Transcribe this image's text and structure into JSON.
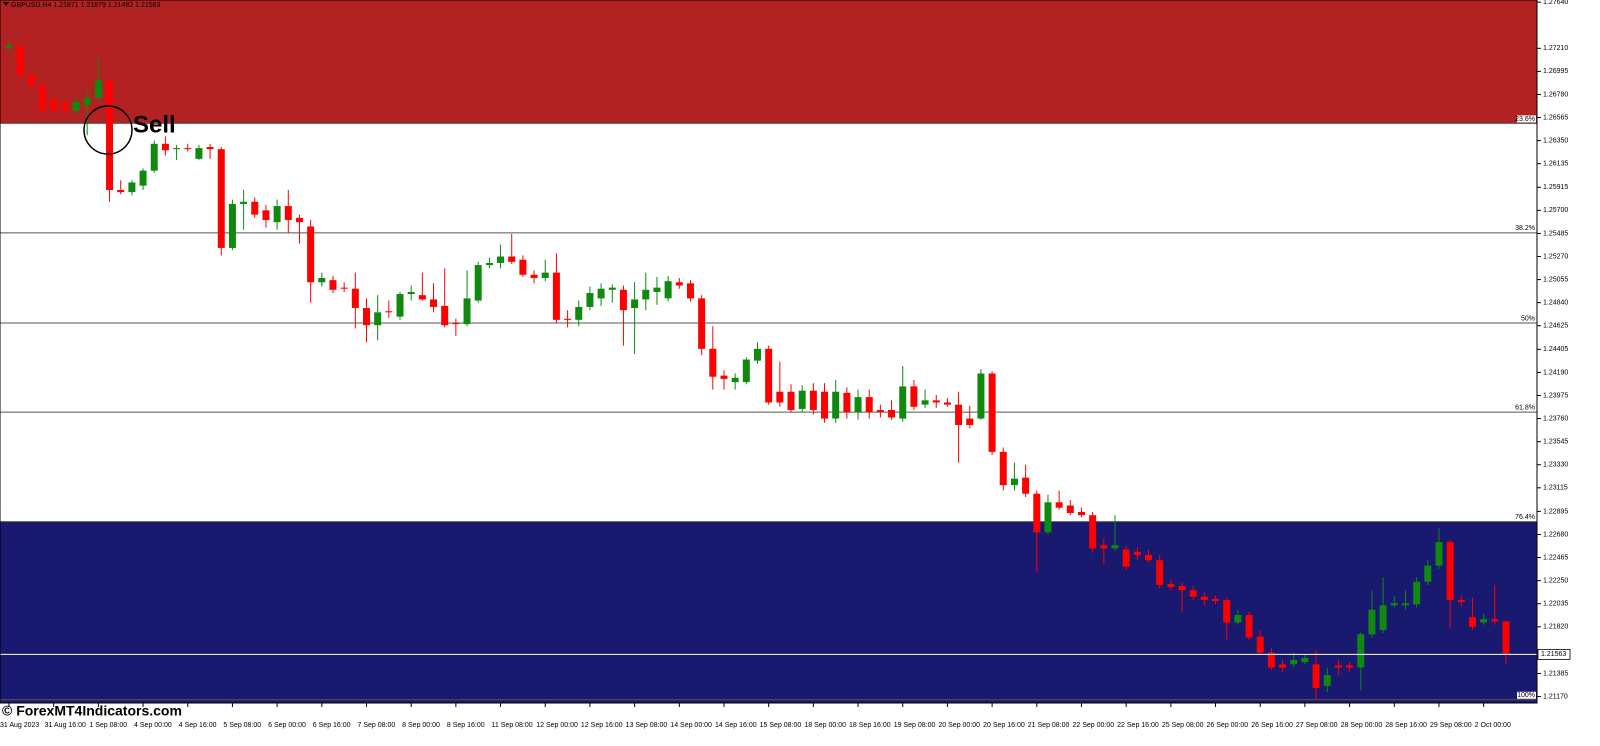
{
  "chart_data": {
    "type": "candlestick",
    "title": "GBPUSD,H4  1.21871 1.21879 1.21482 1.21563",
    "annotation": "Sell",
    "watermark": "© ForexMT4Indicators.com",
    "up_color": "#0f8a0f",
    "down_color": "#ff0000",
    "upper_zone_color": "#b22222",
    "lower_zone_color": "#191970",
    "categories": [
      "31 Aug 2023",
      null,
      null,
      null,
      "31 Aug 16:00",
      null,
      null,
      null,
      "1 Sep 08:00",
      null,
      null,
      null,
      "4 Sep 00:00",
      null,
      null,
      null,
      "4 Sep 16:00",
      null,
      null,
      null,
      "5 Sep 08:00",
      null,
      null,
      null,
      "6 Sep 00:00",
      null,
      null,
      null,
      "6 Sep 16:00",
      null,
      null,
      null,
      "7 Sep 08:00",
      null,
      null,
      null,
      "8 Sep 00:00",
      null,
      null,
      null,
      "8 Sep 16:00",
      null,
      null,
      null,
      "11 Sep 08:00",
      null,
      null,
      null,
      "12 Sep 00:00",
      null,
      null,
      null,
      "12 Sep 16:00",
      null,
      null,
      null,
      "13 Sep 08:00",
      null,
      null,
      null,
      "14 Sep 00:00",
      null,
      null,
      null,
      "14 Sep 16:00",
      null,
      null,
      null,
      "15 Sep 08:00",
      null,
      null,
      null,
      "18 Sep 00:00",
      null,
      null,
      null,
      "18 Sep 16:00",
      null,
      null,
      null,
      "19 Sep 08:00",
      null,
      null,
      null,
      "20 Sep 00:00",
      null,
      null,
      null,
      "20 Sep 16:00",
      null,
      null,
      null,
      "21 Sep 08:00",
      null,
      null,
      null,
      "22 Sep 00:00",
      null,
      null,
      null,
      "22 Sep 16:00",
      null,
      null,
      null,
      "25 Sep 08:00",
      null,
      null,
      null,
      "26 Sep 00:00",
      null,
      null,
      null,
      "26 Sep 16:00",
      null,
      null,
      null,
      "27 Sep 08:00",
      null,
      null,
      null,
      "28 Sep 00:00",
      null,
      null,
      null,
      "28 Sep 16:00",
      null,
      null,
      null,
      "29 Sep 08:00",
      null,
      null,
      null,
      "2 Oct 00:00",
      null,
      null
    ],
    "open": [
      1.2721,
      1.2723,
      1.2696,
      1.2686,
      1.2673,
      1.267,
      1.2663,
      1.2668,
      1.2675,
      1.2691,
      1.2589,
      1.2587,
      1.2593,
      1.2607,
      1.2632,
      1.2627,
      1.2628,
      1.2618,
      1.2629,
      1.2627,
      1.2535,
      1.2576,
      1.2578,
      1.257,
      1.2559,
      1.2574,
      1.2563,
      1.2555,
      1.2503,
      1.2505,
      1.2498,
      1.2497,
      1.2479,
      1.2463,
      1.2476,
      1.2471,
      1.2492,
      1.2491,
      1.2487,
      1.2481,
      1.2465,
      1.2464,
      1.2486,
      1.2519,
      1.2521,
      1.2527,
      1.2524,
      1.251,
      1.2507,
      1.2512,
      1.2469,
      1.2468,
      1.248,
      1.2488,
      1.2496,
      1.2496,
      1.2479,
      1.2487,
      1.2494,
      1.2488,
      1.2503,
      1.2502,
      1.2488,
      1.2441,
      1.2416,
      1.241,
      1.241,
      1.243,
      1.2441,
      1.2401,
      1.2401,
      1.2385,
      1.2402,
      1.2401,
      1.2376,
      1.24,
      1.2382,
      1.2396,
      1.2384,
      1.2384,
      1.2376,
      1.2406,
      1.2389,
      1.2393,
      1.2391,
      1.2389,
      1.2376,
      1.2376,
      1.2418,
      1.2345,
      1.2314,
      1.2321,
      1.2306,
      1.227,
      1.2298,
      1.2295,
      1.2289,
      1.2286,
      1.2258,
      1.2255,
      1.2254,
      1.2252,
      1.2249,
      1.2244,
      1.2222,
      1.222,
      1.2216,
      1.221,
      1.2208,
      1.2207,
      1.2186,
      1.2193,
      1.2173,
      1.2158,
      1.2147,
      1.2147,
      1.2149,
      1.2147,
      1.2127,
      1.2146,
      1.2146,
      1.2144,
      1.2175,
      1.2179,
      1.2202,
      1.2202,
      1.2203,
      1.2224,
      1.2239,
      1.2261,
      1.2207,
      1.2191,
      1.2186,
      1.2189,
      1.2187
    ],
    "high": [
      1.2728,
      1.2725,
      1.2699,
      1.2691,
      1.2675,
      1.2673,
      1.2675,
      1.2682,
      1.2712,
      1.2693,
      1.2598,
      1.2598,
      1.2609,
      1.2635,
      1.2639,
      1.2631,
      1.2632,
      1.2631,
      1.2632,
      1.2629,
      1.258,
      1.2589,
      1.2582,
      1.2575,
      1.258,
      1.2589,
      1.2566,
      1.2561,
      1.2512,
      1.2509,
      1.2503,
      1.2512,
      1.2488,
      1.2491,
      1.2486,
      1.2494,
      1.25,
      1.2512,
      1.2502,
      1.2516,
      1.2469,
      1.2514,
      1.2522,
      1.2526,
      1.2538,
      1.2548,
      1.2528,
      1.2514,
      1.2524,
      1.253,
      1.2477,
      1.2486,
      1.2499,
      1.2502,
      1.2501,
      1.25,
      1.2503,
      1.2512,
      1.2508,
      1.2509,
      1.2507,
      1.2505,
      1.2491,
      1.2462,
      1.2421,
      1.2418,
      1.2433,
      1.2447,
      1.2444,
      1.2429,
      1.2408,
      1.2407,
      1.2409,
      1.2409,
      1.2412,
      1.2405,
      1.2403,
      1.2403,
      1.2389,
      1.2393,
      1.2425,
      1.2412,
      1.2403,
      1.2398,
      1.2395,
      1.2401,
      1.2388,
      1.2422,
      1.242,
      1.2349,
      1.2335,
      1.2333,
      1.2309,
      1.2305,
      1.2309,
      1.23,
      1.2293,
      1.2289,
      1.2265,
      1.2286,
      1.2257,
      1.2256,
      1.2254,
      1.2249,
      1.2226,
      1.2223,
      1.222,
      1.2214,
      1.2211,
      1.2209,
      1.2198,
      1.2196,
      1.2179,
      1.2162,
      1.2151,
      1.2158,
      1.2156,
      1.216,
      1.2144,
      1.2151,
      1.2149,
      1.2177,
      1.2216,
      1.2228,
      1.2211,
      1.2216,
      1.2228,
      1.2244,
      1.2274,
      1.2263,
      1.2211,
      1.2209,
      1.2194,
      1.2221,
      1.2188
    ],
    "low": [
      1.2719,
      1.2694,
      1.2684,
      1.266,
      1.266,
      1.266,
      1.266,
      1.264,
      1.2673,
      1.2578,
      1.2585,
      1.2584,
      1.2589,
      1.2605,
      1.2621,
      1.2617,
      1.2625,
      1.2617,
      1.2618,
      1.2528,
      1.2533,
      1.2552,
      1.2563,
      1.2554,
      1.2552,
      1.2549,
      1.2539,
      1.2484,
      1.2499,
      1.2493,
      1.2494,
      1.246,
      1.2447,
      1.2449,
      1.247,
      1.2468,
      1.2486,
      1.2486,
      1.2475,
      1.2461,
      1.2453,
      1.2462,
      1.2484,
      1.2516,
      1.2516,
      1.252,
      1.2508,
      1.2502,
      1.2504,
      1.2465,
      1.2461,
      1.2462,
      1.2477,
      1.2481,
      1.2484,
      1.2444,
      1.2436,
      1.2477,
      1.2482,
      1.2485,
      1.2497,
      1.2485,
      1.2435,
      1.2403,
      1.2403,
      1.2403,
      1.2408,
      1.2427,
      1.2389,
      1.2387,
      1.2382,
      1.2382,
      1.238,
      1.2372,
      1.2372,
      1.2376,
      1.2375,
      1.2376,
      1.2377,
      1.2375,
      1.2373,
      1.2384,
      1.2386,
      1.2386,
      1.2387,
      1.2335,
      1.2367,
      1.2375,
      1.2342,
      1.2309,
      1.2309,
      1.2303,
      1.2233,
      1.2268,
      1.2291,
      1.2286,
      1.2284,
      1.2251,
      1.224,
      1.2253,
      1.2235,
      1.2244,
      1.2242,
      1.2218,
      1.2216,
      1.2196,
      1.2207,
      1.2202,
      1.2203,
      1.217,
      1.2184,
      1.217,
      1.2156,
      1.2142,
      1.214,
      1.2144,
      1.2147,
      1.2114,
      1.2121,
      1.2137,
      1.214,
      1.2123,
      1.2172,
      1.2176,
      1.22,
      1.2198,
      1.22,
      1.2221,
      1.2236,
      1.2181,
      1.2201,
      1.2179,
      1.2184,
      1.2184,
      1.2148
    ],
    "close": [
      1.2723,
      1.2696,
      1.2686,
      1.2663,
      1.2663,
      1.2663,
      1.2671,
      1.2675,
      1.2691,
      1.2589,
      1.2587,
      1.2596,
      1.2607,
      1.2632,
      1.2626,
      1.2628,
      1.2627,
      1.2628,
      1.2627,
      1.2535,
      1.2576,
      1.2578,
      1.2566,
      1.2561,
      1.2574,
      1.2561,
      1.2559,
      1.2503,
      1.2507,
      1.2496,
      1.2497,
      1.2479,
      1.2463,
      1.2475,
      1.2475,
      1.2492,
      1.2494,
      1.2487,
      1.248,
      1.2463,
      1.2464,
      1.2488,
      1.2519,
      1.2521,
      1.2527,
      1.2522,
      1.251,
      1.2507,
      1.2512,
      1.2468,
      1.2468,
      1.248,
      1.2493,
      1.2497,
      1.2498,
      1.2477,
      1.2487,
      1.2496,
      1.2498,
      1.2504,
      1.25,
      1.2488,
      1.2441,
      1.2415,
      1.2413,
      1.2414,
      1.2431,
      1.2441,
      1.2391,
      1.2391,
      1.2384,
      1.2402,
      1.2384,
      1.2376,
      1.2401,
      1.2382,
      1.2396,
      1.2382,
      1.2382,
      1.2377,
      1.2406,
      1.2387,
      1.2393,
      1.2391,
      1.2389,
      1.237,
      1.237,
      1.2418,
      1.2345,
      1.2314,
      1.232,
      1.2306,
      1.227,
      1.2298,
      1.2293,
      1.2288,
      1.2286,
      1.2255,
      1.2255,
      1.2258,
      1.2238,
      1.2249,
      1.2244,
      1.2221,
      1.2219,
      1.2216,
      1.221,
      1.2207,
      1.2206,
      1.2186,
      1.2193,
      1.2172,
      1.2158,
      1.2144,
      1.2144,
      1.2151,
      1.2153,
      1.2125,
      1.2137,
      1.2144,
      1.2144,
      1.2175,
      1.2198,
      1.2202,
      1.2204,
      1.2204,
      1.2224,
      1.2239,
      1.2261,
      1.2207,
      1.2205,
      1.2182,
      1.2189,
      1.2187,
      1.2156
    ],
    "ylim": [
      1.2111,
      1.2766
    ],
    "yticks": [
      {
        "value": 1.2764,
        "label": "1.27640"
      },
      {
        "value": 1.2721,
        "label": "1.27210"
      },
      {
        "value": 1.26995,
        "label": "1.26995"
      },
      {
        "value": 1.2678,
        "label": "1.26780"
      },
      {
        "value": 1.26565,
        "label": "1.26565"
      },
      {
        "value": 1.2635,
        "label": "1.26350"
      },
      {
        "value": 1.26135,
        "label": "1.26135"
      },
      {
        "value": 1.25915,
        "label": "1.25915"
      },
      {
        "value": 1.257,
        "label": "1.25700"
      },
      {
        "value": 1.25485,
        "label": "1.25485"
      },
      {
        "value": 1.2527,
        "label": "1.25270"
      },
      {
        "value": 1.25055,
        "label": "1.25055"
      },
      {
        "value": 1.2484,
        "label": "1.24840"
      },
      {
        "value": 1.24625,
        "label": "1.24625"
      },
      {
        "value": 1.24405,
        "label": "1.24405"
      },
      {
        "value": 1.2419,
        "label": "1.24190"
      },
      {
        "value": 1.23975,
        "label": "1.23975"
      },
      {
        "value": 1.2376,
        "label": "1.23760"
      },
      {
        "value": 1.23545,
        "label": "1.23545"
      },
      {
        "value": 1.2333,
        "label": "1.23330"
      },
      {
        "value": 1.23115,
        "label": "1.23115"
      },
      {
        "value": 1.22895,
        "label": "1.22895"
      },
      {
        "value": 1.2268,
        "label": "1.22680"
      },
      {
        "value": 1.22465,
        "label": "1.22465"
      },
      {
        "value": 1.2225,
        "label": "1.22250"
      },
      {
        "value": 1.22035,
        "label": "1.22035"
      },
      {
        "value": 1.2182,
        "label": "1.21820"
      },
      {
        "value": 1.21385,
        "label": "1.21385"
      },
      {
        "value": 1.2117,
        "label": "1.21170"
      }
    ],
    "levels": [
      {
        "label": "23.6%",
        "value": 1.2651
      },
      {
        "label": "38.2%",
        "value": 1.2549
      },
      {
        "label": "50%",
        "value": 1.2465
      },
      {
        "label": "61.8%",
        "value": 1.2382
      },
      {
        "label": "76.4%",
        "value": 1.228
      },
      {
        "label": "100%",
        "value": 1.2114
      }
    ],
    "last_price": {
      "value": 1.21563,
      "label": "1.21563"
    }
  }
}
